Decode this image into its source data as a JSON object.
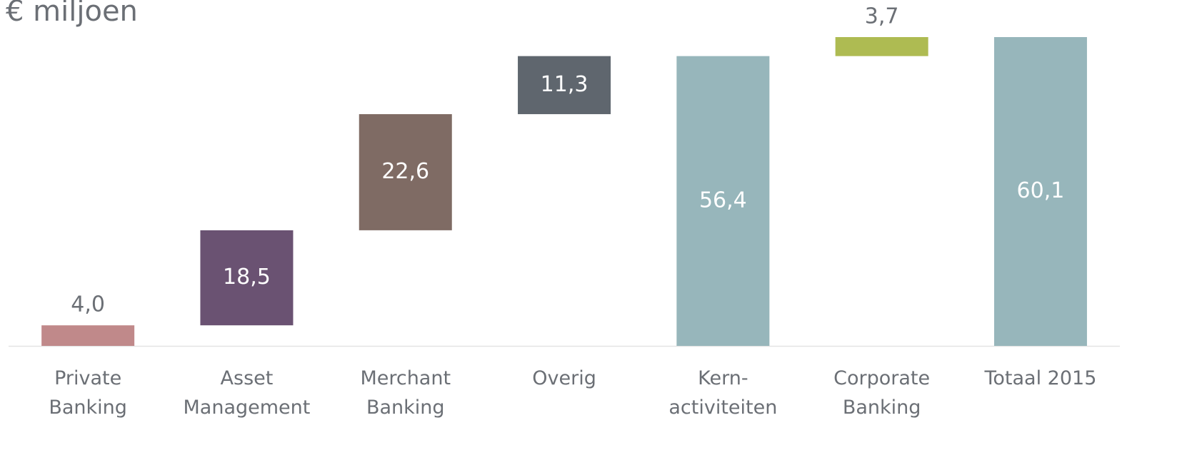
{
  "chart_data": {
    "type": "waterfall",
    "y_label": "€ miljoen",
    "categories": [
      "Private Banking",
      "Asset Management",
      "Merchant Banking",
      "Overig",
      "Kern-activiteiten",
      "Corporate Banking",
      "Totaal 2015"
    ],
    "values": [
      4.0,
      18.5,
      22.6,
      11.3,
      56.4,
      3.7,
      60.1
    ],
    "value_labels": [
      "4,0",
      "18,5",
      "22,6",
      "11,3",
      "56,4",
      "3,7",
      "60,1"
    ],
    "colors": [
      "#c0898a",
      "#6a5272",
      "#7f6b64",
      "#5f666e",
      "#97b6bb",
      "#aebb52",
      "#97b6bb"
    ]
  }
}
